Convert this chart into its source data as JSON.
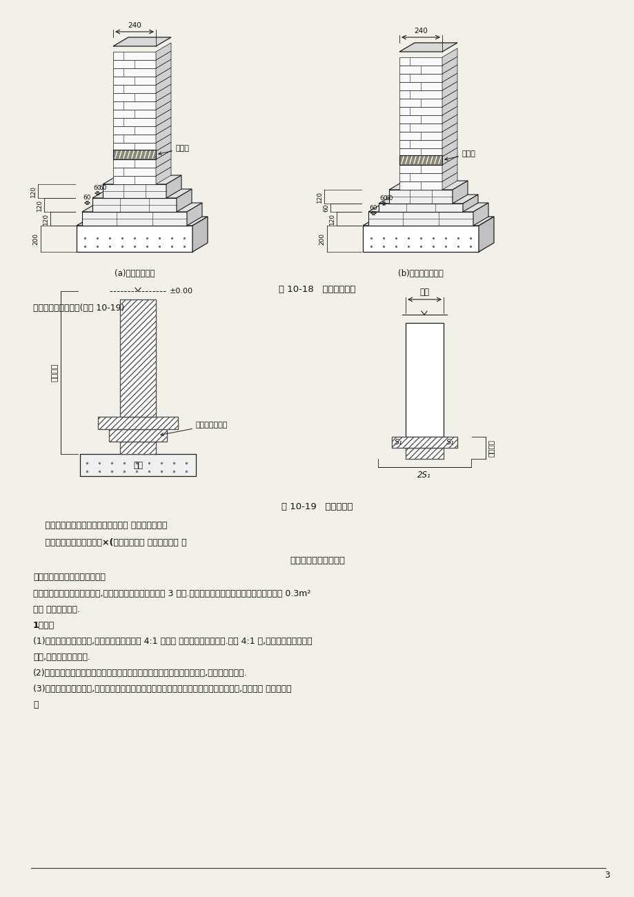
{
  "bg_color": "#f2f0eb",
  "page_num": "3",
  "fig18_caption": "图 10-18   砖基础大放脚",
  "fig18_sub_a": "(a)等高式大放脚",
  "fig18_sub_b": "(b)不等高式大放脚",
  "fig19_caption": "图 10-19   砖基断面图",
  "text_intro": "基础断面计算如下：(见图 10-19)",
  "formula1": "    砖基断面面积＝标准厚墙基面积＋大 放脚增加面积或",
  "formula2": "    砖基断面面积＝标准墙厚×(砖基础深＋大 放脚折加高度 ）",
  "section_title": "混凝土工程量计算规则",
  "section1_title": "一、现浇混凝土工程量计算规则",
  "section1_body1": "混凝土工程量除另有规定者外,均按图示尺寸实体体积以米 3 计算.不扣除构件内钢筋、预埋铁件及墙、板中 0.3m²",
  "section1_body2": "内的 孔洞所占体积.",
  "section2_title": "1、基础",
  "item1a": "(1)有肋带形混凝土基础,其肋高与肋宽之比在 4:1 以内的 按有肋带形基础计算.超过 4:1 时,其基础底按板式基础",
  "item1b": "计算,以上部分按墙计算.",
  "item2": "(2)箱式满堂基础应分别按无梁式满堂基础、柱、墙、梁、板有关规定计算,套相应定额项目.",
  "item3a": "(3)设备基础除块体以外,其他类型设备基础分别按基础、梁、柱、板、墙等有关规定计算,套相应的 定额项目计",
  "item3b": "算"
}
